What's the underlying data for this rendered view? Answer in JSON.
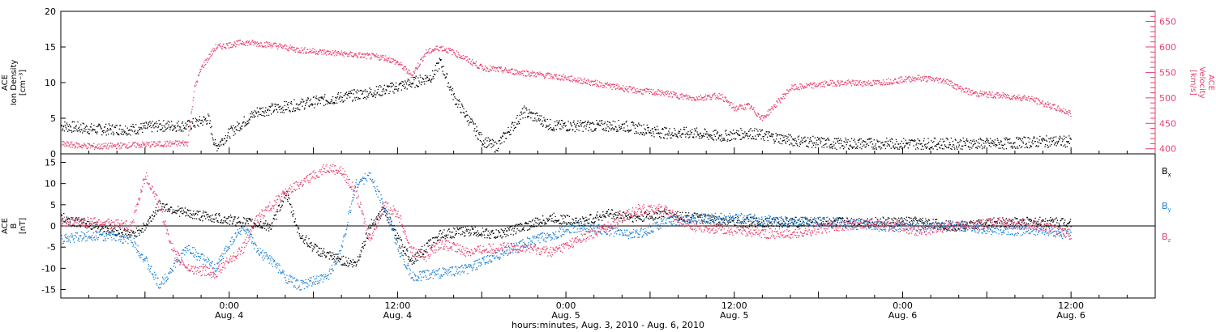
{
  "chart_data": [
    {
      "type": "scatter",
      "panel": "top",
      "ylabel": "ACE\nIon Density\n[cm⁻³]",
      "y2label": "ACE\nVelocity\n[km/s]",
      "ylim": [
        0,
        20
      ],
      "y2lim": [
        390,
        670
      ],
      "yticks": [
        0,
        5,
        10,
        15,
        20
      ],
      "y2ticks": [
        400,
        450,
        500,
        550,
        600,
        650
      ],
      "series": [
        {
          "name": "",
          "axis": "left",
          "color": "#000000",
          "x": [
            0,
            5,
            10,
            14,
            18,
            21,
            22,
            24,
            28,
            34,
            40,
            46,
            50,
            53,
            54,
            56,
            58,
            60,
            62,
            66,
            70,
            74,
            80,
            86,
            90,
            94,
            98,
            104,
            110,
            118,
            126,
            134,
            140,
            144
          ],
          "y": [
            4,
            3.5,
            3.5,
            4,
            4,
            5,
            1,
            3,
            6,
            7,
            8,
            9,
            10,
            11,
            13,
            8,
            5,
            2,
            1,
            6,
            4,
            4,
            4,
            3,
            3,
            2.5,
            3,
            2,
            1.5,
            1.5,
            1.5,
            1.5,
            1.8,
            1.8
          ]
        },
        {
          "name": "",
          "axis": "right",
          "color": "#e8426e",
          "x": [
            0,
            5,
            10,
            14,
            18,
            19,
            20,
            22,
            26,
            30,
            34,
            38,
            42,
            46,
            48,
            50,
            52,
            54,
            56,
            58,
            60,
            66,
            72,
            78,
            82,
            86,
            90,
            94,
            96,
            98,
            100,
            104,
            110,
            116,
            122,
            126,
            128,
            130,
            134,
            138,
            142,
            144
          ],
          "y": [
            410,
            405,
            408,
            410,
            412,
            520,
            560,
            600,
            610,
            605,
            595,
            590,
            585,
            580,
            570,
            545,
            590,
            600,
            590,
            575,
            560,
            550,
            540,
            525,
            515,
            510,
            500,
            505,
            480,
            485,
            460,
            520,
            530,
            530,
            540,
            535,
            520,
            510,
            505,
            500,
            480,
            470
          ]
        }
      ]
    },
    {
      "type": "scatter",
      "panel": "bottom",
      "ylabel": "ACE\nB\n[nT]",
      "ylim": [
        -17,
        17
      ],
      "yticks": [
        -15,
        -10,
        -5,
        0,
        5,
        10,
        15
      ],
      "xlabel": "hours:minutes, Aug.  3, 2010 - Aug.  6, 2010",
      "xticks": [
        {
          "hour": 24,
          "time": "0:00",
          "date": "Aug. 4"
        },
        {
          "hour": 48,
          "time": "12:00",
          "date": "Aug. 4"
        },
        {
          "hour": 72,
          "time": "0:00",
          "date": "Aug. 5"
        },
        {
          "hour": 96,
          "time": "12:00",
          "date": "Aug. 5"
        },
        {
          "hour": 120,
          "time": "0:00",
          "date": "Aug. 6"
        },
        {
          "hour": 144,
          "time": "12:00",
          "date": "Aug. 6"
        }
      ],
      "xlim": [
        0,
        156
      ],
      "series": [
        {
          "name": "B",
          "sub": "x",
          "color": "#000000",
          "x": [
            0,
            5,
            8,
            10,
            12,
            14,
            18,
            22,
            26,
            30,
            32,
            34,
            36,
            38,
            40,
            42,
            44,
            46,
            48,
            50,
            54,
            58,
            62,
            66,
            70,
            74,
            78,
            82,
            86,
            90,
            96,
            104,
            110,
            116,
            122,
            128,
            134,
            140,
            144
          ],
          "y": [
            2,
            0,
            -1,
            -2,
            0,
            5,
            3,
            2,
            1,
            0,
            8,
            -2,
            -5,
            -7,
            -8,
            -9,
            0,
            4,
            -3,
            -8,
            -2,
            -1,
            -2,
            0,
            2,
            1,
            3,
            2,
            3,
            2,
            1,
            1,
            1,
            1,
            1,
            0,
            1,
            1,
            1
          ]
        },
        {
          "name": "B",
          "sub": "y",
          "color": "#1a7fd8",
          "x": [
            0,
            5,
            10,
            12,
            14,
            18,
            22,
            24,
            26,
            28,
            30,
            32,
            34,
            36,
            38,
            40,
            42,
            44,
            46,
            48,
            50,
            54,
            58,
            62,
            66,
            70,
            74,
            78,
            82,
            86,
            90,
            96,
            104,
            110,
            116,
            122,
            128,
            134,
            140,
            144
          ],
          "y": [
            -3,
            -2,
            -3,
            -8,
            -14,
            -5,
            -10,
            -4,
            0,
            -6,
            -8,
            -12,
            -14,
            -13,
            -12,
            -5,
            10,
            12,
            5,
            -5,
            -12,
            -11,
            -10,
            -7,
            -4,
            -2,
            0,
            -1,
            -2,
            1,
            2,
            2,
            1,
            1,
            0,
            0,
            0,
            -1,
            -1,
            -2
          ]
        },
        {
          "name": "B",
          "sub": "z",
          "color": "#e8426e",
          "x": [
            0,
            5,
            10,
            12,
            14,
            16,
            18,
            22,
            26,
            28,
            30,
            32,
            34,
            36,
            38,
            40,
            42,
            44,
            46,
            48,
            50,
            52,
            54,
            58,
            62,
            66,
            70,
            74,
            78,
            82,
            86,
            90,
            96,
            104,
            110,
            116,
            122,
            128,
            134,
            140,
            144
          ],
          "y": [
            1,
            1,
            0,
            12,
            5,
            -6,
            -10,
            -11,
            -5,
            2,
            5,
            8,
            10,
            12,
            14,
            13,
            8,
            -3,
            5,
            3,
            -6,
            -7,
            -4,
            -6,
            -5,
            -5,
            -6,
            -3,
            0,
            4,
            4,
            0,
            -1,
            -2,
            0,
            1,
            -1,
            0,
            1,
            0,
            -2
          ]
        }
      ]
    }
  ]
}
